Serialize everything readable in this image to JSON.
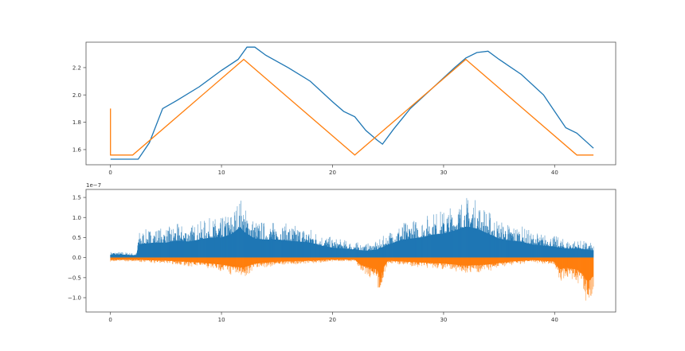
{
  "colors": {
    "series1": "#1f77b4",
    "series2": "#ff7f0e",
    "axis": "#555555"
  },
  "chart_data": [
    {
      "type": "line",
      "xlim": [
        -2.2,
        45.5
      ],
      "ylim": [
        1.489,
        2.386
      ],
      "xticks": [
        0,
        10,
        20,
        30,
        40
      ],
      "xtick_labels": [
        "0",
        "10",
        "20",
        "30",
        "40"
      ],
      "yticks": [
        1.6,
        1.8,
        2.0,
        2.2
      ],
      "ytick_labels": [
        "1.6",
        "1.8",
        "2.0",
        "2.2"
      ],
      "grid": false,
      "series": [
        {
          "color": "#1f77b4",
          "x": [
            0,
            2.5,
            3.5,
            4.7,
            6,
            8,
            10,
            11.5,
            12.3,
            13,
            14,
            16,
            18,
            20,
            21,
            22,
            23,
            24,
            24.5,
            25.5,
            27,
            29,
            31,
            32,
            33,
            34,
            35,
            37,
            39,
            40,
            41,
            42,
            43.5
          ],
          "y": [
            1.53,
            1.53,
            1.65,
            1.9,
            1.96,
            2.06,
            2.18,
            2.26,
            2.35,
            2.35,
            2.29,
            2.2,
            2.1,
            1.95,
            1.88,
            1.84,
            1.74,
            1.67,
            1.64,
            1.75,
            1.9,
            2.05,
            2.2,
            2.27,
            2.31,
            2.32,
            2.26,
            2.15,
            2.0,
            1.88,
            1.76,
            1.72,
            1.61
          ]
        },
        {
          "color": "#ff7f0e",
          "x": [
            0,
            0,
            2,
            12,
            22,
            32,
            42,
            43.5
          ],
          "y": [
            1.9,
            1.56,
            1.56,
            2.26,
            1.56,
            2.26,
            1.56,
            1.56
          ]
        }
      ]
    },
    {
      "type": "line",
      "xlim": [
        -2.2,
        45.5
      ],
      "ylim": [
        -1.357,
        1.7
      ],
      "offset_label": "1e−7",
      "xticks": [
        0,
        10,
        20,
        30,
        40
      ],
      "xtick_labels": [
        "0",
        "10",
        "20",
        "30",
        "40"
      ],
      "yticks": [
        -1.0,
        -0.5,
        0.0,
        0.5,
        1.0,
        1.5
      ],
      "ytick_labels": [
        "−1.0",
        "−0.5",
        "0.0",
        "0.5",
        "1.0",
        "1.5"
      ],
      "grid": false,
      "series": [
        {
          "color": "#1f77b4",
          "envelope": "upper",
          "x": [
            0,
            1,
            2,
            2.4,
            2.5,
            3,
            4,
            5,
            6,
            7,
            8,
            9,
            10,
            11,
            11.7,
            12,
            13,
            14,
            15,
            16,
            17,
            18,
            19,
            20,
            21,
            22,
            23,
            24,
            25,
            26,
            27,
            28,
            29,
            30,
            31,
            32,
            33,
            34,
            35,
            36,
            37,
            38,
            39,
            40,
            41,
            42,
            43,
            43.5
          ],
          "y": [
            0.15,
            0.15,
            0.12,
            0.12,
            0.65,
            0.7,
            0.75,
            0.75,
            0.85,
            0.8,
            0.9,
            1.0,
            1.0,
            1.2,
            1.55,
            1.3,
            0.95,
            0.9,
            0.9,
            0.85,
            0.8,
            0.75,
            0.6,
            0.5,
            0.45,
            0.4,
            0.35,
            0.4,
            0.65,
            0.85,
            0.95,
            1.0,
            1.15,
            1.2,
            1.35,
            1.55,
            1.45,
            1.2,
            0.95,
            0.85,
            0.8,
            0.65,
            0.6,
            0.55,
            0.45,
            0.45,
            0.4,
            0.35
          ]
        },
        {
          "color": "#ff7f0e",
          "envelope": "lower",
          "x": [
            0,
            2,
            3,
            5,
            8,
            10,
            11,
            12,
            13,
            15,
            18,
            20,
            22,
            22.5,
            23,
            24,
            24.3,
            24.6,
            25,
            28,
            30,
            32,
            34,
            36,
            38,
            40,
            40.5,
            41,
            42,
            42.5,
            43,
            43.5
          ],
          "y": [
            -0.1,
            -0.1,
            -0.12,
            -0.15,
            -0.25,
            -0.35,
            -0.45,
            -0.5,
            -0.3,
            -0.2,
            -0.15,
            -0.1,
            -0.1,
            -0.35,
            -0.45,
            -0.6,
            -1.05,
            -0.5,
            -0.15,
            -0.25,
            -0.3,
            -0.4,
            -0.35,
            -0.2,
            -0.12,
            -0.2,
            -0.6,
            -0.5,
            -0.6,
            -0.8,
            -1.25,
            -0.9
          ]
        }
      ]
    }
  ]
}
